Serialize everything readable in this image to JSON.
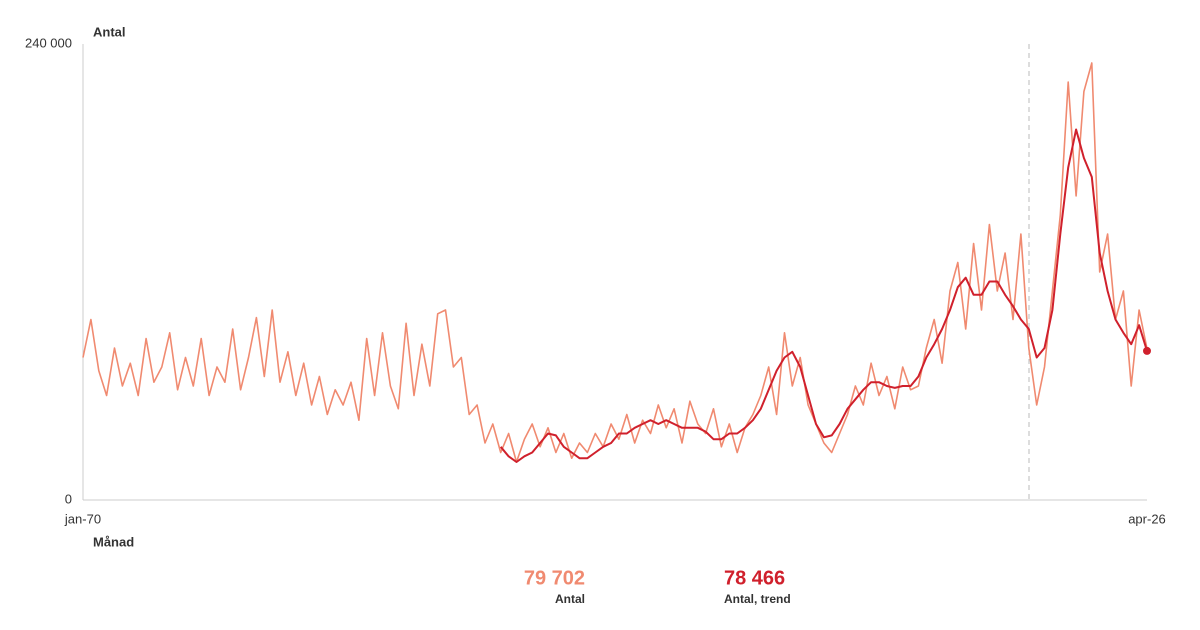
{
  "chart_data": {
    "type": "line",
    "y_label": "Antal",
    "x_label": "Månad",
    "categories": [
      "jan-70",
      null,
      null,
      null,
      null,
      null,
      null,
      null,
      null,
      null,
      null,
      null,
      null,
      null,
      null,
      null,
      null,
      null,
      null,
      null,
      null,
      null,
      null,
      null,
      null,
      null,
      null,
      null,
      null,
      null,
      null,
      null,
      null,
      null,
      null,
      null,
      null,
      null,
      null,
      null,
      null,
      null,
      null,
      null,
      null,
      null,
      null,
      null,
      null,
      null,
      null,
      null,
      null,
      null,
      null,
      null,
      null,
      null,
      null,
      null,
      null,
      null,
      null,
      null,
      null,
      null,
      null,
      null,
      null,
      null,
      null,
      null,
      null,
      null,
      null,
      null,
      null,
      null,
      null,
      null,
      null,
      null,
      null,
      null,
      null,
      null,
      null,
      null,
      null,
      null,
      null,
      null,
      null,
      null,
      null,
      null,
      null,
      null,
      null,
      null,
      null,
      null,
      null,
      null,
      null,
      null,
      null,
      null,
      null,
      null,
      null,
      null,
      null,
      null,
      null,
      null,
      null,
      null,
      null,
      null,
      null,
      null,
      null,
      null,
      null,
      null,
      null,
      null,
      null,
      null,
      null,
      null,
      null,
      null,
      null,
      "apr-26"
    ],
    "ylim": [
      0,
      240000
    ],
    "yticks": [
      0,
      {
        "value": 240000,
        "label": "240 000"
      }
    ],
    "series": [
      {
        "name": "Antal",
        "color": "#f08a70",
        "values": [
          75000,
          95000,
          68000,
          55000,
          80000,
          60000,
          72000,
          55000,
          85000,
          62000,
          70000,
          88000,
          58000,
          75000,
          60000,
          85000,
          55000,
          70000,
          62000,
          90000,
          58000,
          75000,
          96000,
          65000,
          100000,
          62000,
          78000,
          55000,
          72000,
          50000,
          65000,
          45000,
          58000,
          50000,
          62000,
          42000,
          85000,
          55000,
          88000,
          60000,
          48000,
          93000,
          55000,
          82000,
          60000,
          98000,
          100000,
          70000,
          75000,
          45000,
          50000,
          30000,
          40000,
          25000,
          35000,
          20000,
          32000,
          40000,
          28000,
          38000,
          25000,
          35000,
          22000,
          30000,
          25000,
          35000,
          28000,
          40000,
          32000,
          45000,
          30000,
          42000,
          35000,
          50000,
          38000,
          48000,
          30000,
          52000,
          40000,
          35000,
          48000,
          28000,
          40000,
          25000,
          38000,
          45000,
          55000,
          70000,
          45000,
          88000,
          60000,
          75000,
          50000,
          40000,
          30000,
          25000,
          35000,
          45000,
          60000,
          50000,
          72000,
          55000,
          65000,
          48000,
          70000,
          58000,
          60000,
          80000,
          95000,
          72000,
          110000,
          125000,
          90000,
          135000,
          100000,
          145000,
          110000,
          130000,
          95000,
          140000,
          80000,
          50000,
          70000,
          110000,
          150000,
          220000,
          160000,
          215000,
          230000,
          120000,
          140000,
          95000,
          110000,
          60000,
          100000,
          79702
        ],
        "value_labels": [
          null,
          null,
          null,
          null,
          null,
          null,
          null,
          null,
          null,
          null,
          null,
          null,
          null,
          null,
          null,
          null,
          null,
          null,
          null,
          null,
          null,
          null,
          null,
          null,
          null,
          null,
          null,
          null,
          null,
          null,
          null,
          null,
          null,
          null,
          null,
          null,
          null,
          null,
          null,
          null,
          null,
          null,
          null,
          null,
          null,
          null,
          null,
          null,
          null,
          null,
          null,
          null,
          null,
          null,
          null,
          null,
          null,
          null,
          null,
          null,
          null,
          null,
          null,
          null,
          null,
          null,
          null,
          null,
          null,
          null,
          null,
          null,
          null,
          null,
          null,
          null,
          null,
          null,
          null,
          null,
          null,
          null,
          null,
          null,
          null,
          null,
          null,
          null,
          null,
          null,
          null,
          null,
          null,
          null,
          null,
          null,
          null,
          null,
          null,
          null,
          null,
          null,
          null,
          null,
          null,
          null,
          null,
          null,
          null,
          null,
          null,
          null,
          null,
          null,
          null,
          null,
          null,
          null,
          null,
          null,
          null,
          null,
          null,
          null,
          null,
          null,
          null,
          null,
          null,
          null,
          null,
          null,
          null,
          null,
          null,
          "79 702"
        ]
      },
      {
        "name": "Antal, trend",
        "color": "#d0202c",
        "values": [
          null,
          null,
          null,
          null,
          null,
          null,
          null,
          null,
          null,
          null,
          null,
          null,
          null,
          null,
          null,
          null,
          null,
          null,
          null,
          null,
          null,
          null,
          null,
          null,
          null,
          null,
          null,
          null,
          null,
          null,
          null,
          null,
          null,
          null,
          null,
          null,
          null,
          null,
          null,
          null,
          null,
          null,
          null,
          null,
          null,
          null,
          null,
          null,
          null,
          null,
          null,
          null,
          null,
          28000,
          23000,
          20000,
          23000,
          25000,
          30000,
          35000,
          34000,
          28000,
          25000,
          22000,
          22000,
          25000,
          28000,
          30000,
          35000,
          35000,
          38000,
          40000,
          42000,
          40000,
          42000,
          40000,
          38000,
          38000,
          38000,
          36000,
          32000,
          32000,
          35000,
          35000,
          38000,
          42000,
          48000,
          58000,
          68000,
          75000,
          78000,
          70000,
          55000,
          40000,
          33000,
          34000,
          40000,
          48000,
          53000,
          58000,
          62000,
          62000,
          60000,
          59000,
          60000,
          60000,
          65000,
          75000,
          82000,
          90000,
          100000,
          112000,
          117000,
          108000,
          108000,
          115000,
          115000,
          108000,
          102000,
          95000,
          90000,
          75000,
          80000,
          100000,
          140000,
          175000,
          195000,
          180000,
          170000,
          130000,
          110000,
          95000,
          88000,
          82000,
          92000,
          78466
        ],
        "value_labels": [
          null,
          null,
          null,
          null,
          null,
          null,
          null,
          null,
          null,
          null,
          null,
          null,
          null,
          null,
          null,
          null,
          null,
          null,
          null,
          null,
          null,
          null,
          null,
          null,
          null,
          null,
          null,
          null,
          null,
          null,
          null,
          null,
          null,
          null,
          null,
          null,
          null,
          null,
          null,
          null,
          null,
          null,
          null,
          null,
          null,
          null,
          null,
          null,
          null,
          null,
          null,
          null,
          null,
          null,
          null,
          null,
          null,
          null,
          null,
          null,
          null,
          null,
          null,
          null,
          null,
          null,
          null,
          null,
          null,
          null,
          null,
          null,
          null,
          null,
          null,
          null,
          null,
          null,
          null,
          null,
          null,
          null,
          null,
          null,
          null,
          null,
          null,
          null,
          null,
          null,
          null,
          null,
          null,
          null,
          null,
          null,
          null,
          null,
          null,
          null,
          null,
          null,
          null,
          null,
          null,
          null,
          null,
          null,
          null,
          null,
          null,
          null,
          null,
          null,
          null,
          null,
          null,
          null,
          null,
          null,
          null,
          null,
          null,
          null,
          null,
          null,
          null,
          null,
          null,
          null,
          null,
          null,
          null,
          null,
          null,
          "78 466"
        ]
      }
    ]
  }
}
